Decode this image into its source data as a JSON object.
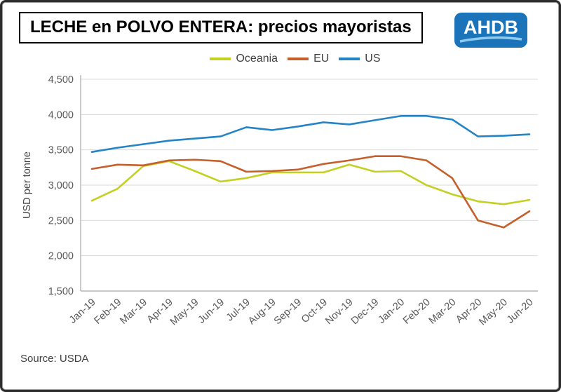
{
  "header": {
    "title": "LECHE en POLVO ENTERA: precios mayoristas",
    "logo": "AHDB"
  },
  "footer": {
    "source": "Source: USDA"
  },
  "colors": {
    "oceania": "#c3d021",
    "eu": "#c55f2b",
    "us": "#2484c6",
    "logo_blue": "#1b74b9",
    "logo_swoosh": "#8ecbef",
    "grid": "#d9d9d9",
    "axis": "#a6a6a6",
    "tick_text": "#595959"
  },
  "chart_data": {
    "type": "line",
    "title": "LECHE en POLVO ENTERA: precios mayoristas",
    "ylabel": "USD per tonne",
    "ylim": [
      1500,
      4500
    ],
    "ytick_step": 500,
    "grid": true,
    "legend_position": "top",
    "categories": [
      "Jan-19",
      "Feb-19",
      "Mar-19",
      "Apr-19",
      "May-19",
      "Jun-19",
      "Jul-19",
      "Aug-19",
      "Sep-19",
      "Oct-19",
      "Nov-19",
      "Dec-19",
      "Jan-20",
      "Feb-20",
      "Mar-20",
      "Apr-20",
      "May-20",
      "Jun-20"
    ],
    "series": [
      {
        "name": "Oceania",
        "color": "#c3d021",
        "values": [
          2780,
          2950,
          3270,
          3340,
          3200,
          3050,
          3100,
          3180,
          3180,
          3180,
          3290,
          3190,
          3200,
          3000,
          2870,
          2770,
          2730,
          2790
        ]
      },
      {
        "name": "EU",
        "color": "#c55f2b",
        "values": [
          3230,
          3290,
          3280,
          3350,
          3360,
          3340,
          3190,
          3200,
          3220,
          3300,
          3350,
          3410,
          3410,
          3350,
          3100,
          2500,
          2400,
          2630
        ]
      },
      {
        "name": "US",
        "color": "#2484c6",
        "values": [
          3470,
          3530,
          3580,
          3630,
          3660,
          3690,
          3820,
          3780,
          3830,
          3890,
          3860,
          3920,
          3980,
          3980,
          3930,
          3690,
          3700,
          3720
        ]
      }
    ]
  }
}
